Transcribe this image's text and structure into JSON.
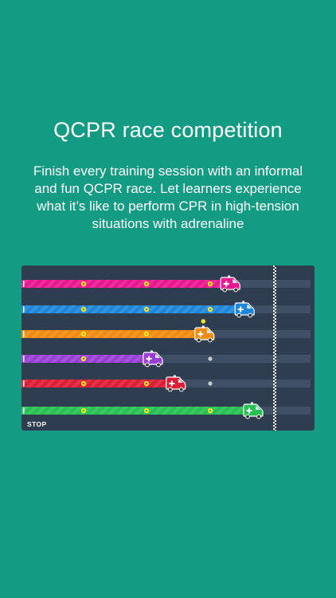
{
  "title": "QCPR race competition",
  "description": "Finish every training session with an informal and fun QCPR race. Let learners experience what it’s like to perform CPR in high-tension situations with adrenaline",
  "race": {
    "stop_label": "STOP",
    "lanes": [
      {
        "color": "#e8168f",
        "progress": 0.72,
        "checkpoints_passed": 3
      },
      {
        "color": "#1e86d8",
        "progress": 0.77,
        "checkpoints_passed": 3
      },
      {
        "color": "#f08a10",
        "progress": 0.63,
        "checkpoints_passed": 3,
        "flagged": true
      },
      {
        "color": "#9a3fd6",
        "progress": 0.45,
        "checkpoints_passed": 2
      },
      {
        "color": "#dd1d35",
        "progress": 0.53,
        "checkpoints_passed": 2
      },
      {
        "color": "#27c052",
        "progress": 0.8,
        "checkpoints_passed": 3
      }
    ],
    "colors": {
      "track": "#3f5064",
      "checkpoint": "#f2e225",
      "checkpoint_pending": "#c7ccd2",
      "finish_line": "#ffffff"
    }
  }
}
